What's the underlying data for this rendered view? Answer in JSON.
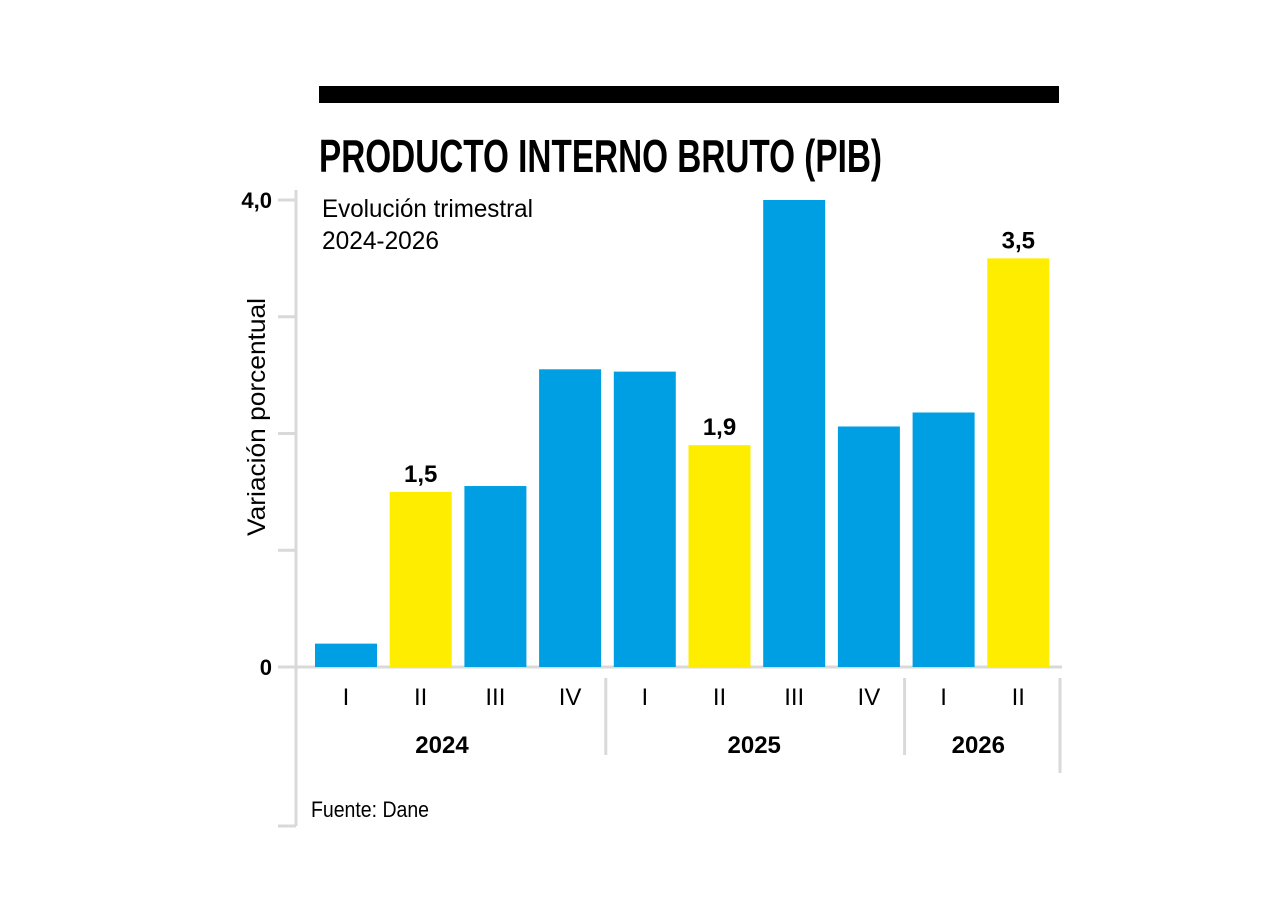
{
  "chart_data": {
    "type": "bar",
    "title": "PRODUCTO INTERNO BRUTO (PIB)",
    "subtitle_line1": "Evolución trimestral",
    "subtitle_line2": "2024-2026",
    "ylabel": "Variación porcentual",
    "xlabel": "",
    "ylim": [
      0,
      4.0
    ],
    "yticks": [
      0,
      1.0,
      2.0,
      3.0,
      4.0
    ],
    "ytick_labels": [
      "0",
      "",
      "",
      "",
      "4,0"
    ],
    "categories": [
      "I",
      "II",
      "III",
      "IV",
      "I",
      "II",
      "III",
      "IV",
      "I",
      "II"
    ],
    "years": [
      {
        "label": "2024",
        "quarters": 4
      },
      {
        "label": "2025",
        "quarters": 4
      },
      {
        "label": "2026",
        "quarters": 2
      }
    ],
    "values": [
      0.2,
      1.5,
      1.55,
      2.55,
      2.53,
      1.9,
      4.0,
      2.06,
      2.18,
      3.5
    ],
    "highlight": [
      false,
      true,
      false,
      false,
      false,
      true,
      false,
      false,
      false,
      true
    ],
    "data_labels": [
      "",
      "1,5",
      "",
      "",
      "",
      "1,9",
      "",
      "",
      "",
      "3,5"
    ],
    "source": "Fuente: Dane",
    "colors": {
      "bar": "#009fe3",
      "highlight": "#ffed00",
      "axis": "#d9d9d9",
      "text": "#000000"
    },
    "grid": false,
    "legend": "none"
  }
}
